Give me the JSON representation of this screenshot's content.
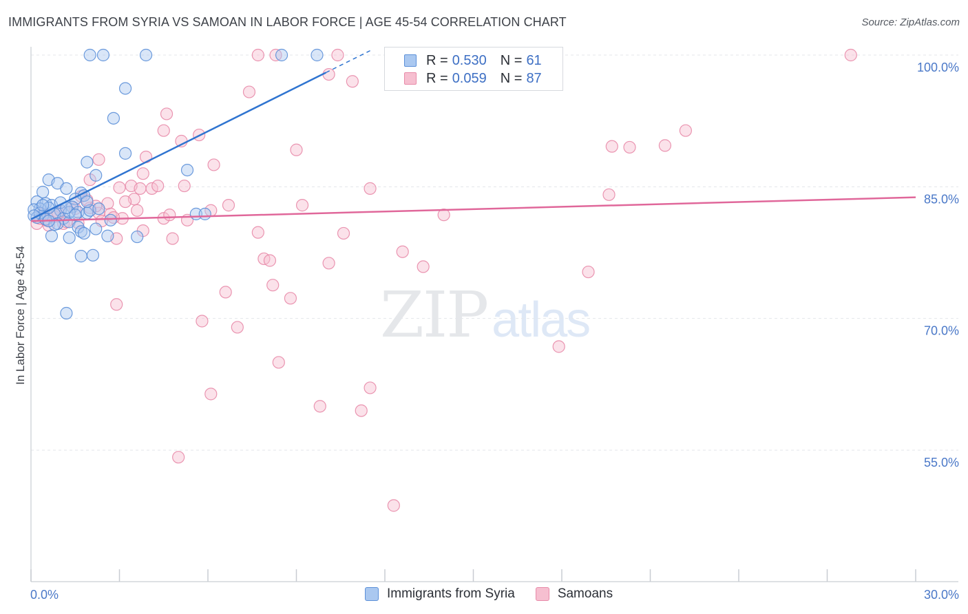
{
  "title": "IMMIGRANTS FROM SYRIA VS SAMOAN IN LABOR FORCE | AGE 45-54 CORRELATION CHART",
  "source": "Source: ZipAtlas.com",
  "watermark": {
    "zip": "ZIP",
    "atlas": "atlas"
  },
  "legend": {
    "rows": [
      {
        "r_label": "R =",
        "r_value": "0.530",
        "n_label": "N =",
        "n_value": "61"
      },
      {
        "r_label": "R =",
        "r_value": "0.059",
        "n_label": "N =",
        "n_value": "87"
      }
    ]
  },
  "bottom_legend": [
    "Immigrants from Syria",
    "Samoans"
  ],
  "colors": {
    "syria_fill": "#aac8f0",
    "syria_stroke": "#5b8fd8",
    "syria_line": "#2f74d0",
    "samoa_fill": "#f6bfd0",
    "samoa_stroke": "#e88aa8",
    "samoa_line": "#e0679a",
    "tick_text": "#4a78c8",
    "grid": "#e3e6ea"
  },
  "chart_data": {
    "type": "scatter",
    "title": "IMMIGRANTS FROM SYRIA VS SAMOAN IN LABOR FORCE | AGE 45-54 CORRELATION CHART",
    "xlabel": "",
    "ylabel": "In Labor Force | Age 45-54",
    "xlim": [
      0,
      30
    ],
    "ylim": [
      40,
      100
    ],
    "x_tick_labels": [
      "0.0%",
      "30.0%"
    ],
    "y_ticks": [
      100,
      85,
      70,
      55
    ],
    "y_tick_labels": [
      "100.0%",
      "85.0%",
      "70.0%",
      "55.0%"
    ],
    "series": [
      {
        "name": "Immigrants from Syria",
        "r": 0.53,
        "n": 61,
        "trend": {
          "x0": 0,
          "y0": 81.3,
          "x1": 10.0,
          "y1": 98.0,
          "dash_x1": 11.5,
          "dash_y1": 100.5
        },
        "points": [
          [
            2.0,
            100
          ],
          [
            2.45,
            100
          ],
          [
            3.9,
            100
          ],
          [
            8.5,
            100
          ],
          [
            9.7,
            100
          ],
          [
            3.2,
            96.2
          ],
          [
            2.8,
            92.8
          ],
          [
            3.2,
            88.8
          ],
          [
            1.9,
            87.8
          ],
          [
            2.2,
            86.3
          ],
          [
            5.3,
            86.9
          ],
          [
            0.6,
            85.8
          ],
          [
            0.9,
            85.4
          ],
          [
            1.2,
            84.8
          ],
          [
            0.4,
            84.4
          ],
          [
            1.7,
            84.3
          ],
          [
            1.8,
            84.0
          ],
          [
            1.5,
            83.6
          ],
          [
            0.2,
            83.3
          ],
          [
            0.5,
            83.1
          ],
          [
            0.7,
            82.9
          ],
          [
            1.4,
            82.7
          ],
          [
            0.3,
            82.5
          ],
          [
            0.1,
            82.4
          ],
          [
            1.0,
            82.3
          ],
          [
            1.6,
            82.1
          ],
          [
            1.9,
            82.0
          ],
          [
            0.8,
            81.9
          ],
          [
            0.4,
            81.7
          ],
          [
            0.2,
            81.5
          ],
          [
            1.1,
            81.4
          ],
          [
            2.7,
            81.2
          ],
          [
            1.3,
            81.0
          ],
          [
            0.9,
            80.8
          ],
          [
            1.6,
            80.4
          ],
          [
            2.2,
            80.2
          ],
          [
            1.7,
            79.9
          ],
          [
            1.8,
            79.7
          ],
          [
            0.7,
            79.4
          ],
          [
            1.3,
            79.2
          ],
          [
            2.6,
            79.4
          ],
          [
            3.6,
            79.3
          ],
          [
            1.7,
            77.1
          ],
          [
            2.1,
            77.2
          ],
          [
            1.2,
            70.6
          ],
          [
            5.6,
            81.9
          ],
          [
            5.9,
            81.9
          ],
          [
            0.3,
            82.0
          ],
          [
            0.6,
            82.6
          ],
          [
            1.3,
            82.1
          ],
          [
            2.0,
            82.3
          ],
          [
            0.5,
            81.3
          ],
          [
            0.8,
            80.7
          ],
          [
            1.5,
            81.8
          ],
          [
            2.3,
            82.5
          ],
          [
            0.1,
            81.7
          ],
          [
            0.4,
            82.9
          ],
          [
            1.0,
            83.2
          ],
          [
            1.9,
            83.3
          ],
          [
            0.6,
            81.1
          ],
          [
            1.2,
            82.6
          ]
        ]
      },
      {
        "name": "Samoans",
        "r": 0.059,
        "n": 87,
        "trend": {
          "x0": 0,
          "y0": 81.1,
          "x1": 30,
          "y1": 83.8
        },
        "points": [
          [
            7.7,
            100
          ],
          [
            8.3,
            100
          ],
          [
            10.4,
            100
          ],
          [
            27.8,
            100
          ],
          [
            10.1,
            97.8
          ],
          [
            10.9,
            97.0
          ],
          [
            7.4,
            95.8
          ],
          [
            4.6,
            93.3
          ],
          [
            4.5,
            91.4
          ],
          [
            5.7,
            90.9
          ],
          [
            5.1,
            90.2
          ],
          [
            9.0,
            89.2
          ],
          [
            19.7,
            89.6
          ],
          [
            20.3,
            89.5
          ],
          [
            21.5,
            89.7
          ],
          [
            22.2,
            91.4
          ],
          [
            3.9,
            88.4
          ],
          [
            2.3,
            88.1
          ],
          [
            6.2,
            87.5
          ],
          [
            3.8,
            86.5
          ],
          [
            2.0,
            85.8
          ],
          [
            3.4,
            85.1
          ],
          [
            3.0,
            84.9
          ],
          [
            3.7,
            84.8
          ],
          [
            4.1,
            84.8
          ],
          [
            4.3,
            85.1
          ],
          [
            5.2,
            85.1
          ],
          [
            11.5,
            84.8
          ],
          [
            19.6,
            84.1
          ],
          [
            1.7,
            83.9
          ],
          [
            3.5,
            83.6
          ],
          [
            3.2,
            83.3
          ],
          [
            2.6,
            83.1
          ],
          [
            6.7,
            82.9
          ],
          [
            9.2,
            82.9
          ],
          [
            1.4,
            82.7
          ],
          [
            2.0,
            82.6
          ],
          [
            6.1,
            82.3
          ],
          [
            1.0,
            82.2
          ],
          [
            2.3,
            82.0
          ],
          [
            2.7,
            81.9
          ],
          [
            3.1,
            81.4
          ],
          [
            4.5,
            81.4
          ],
          [
            4.7,
            81.8
          ],
          [
            5.3,
            81.2
          ],
          [
            14.0,
            81.8
          ],
          [
            2.4,
            81.1
          ],
          [
            1.1,
            80.8
          ],
          [
            0.6,
            80.6
          ],
          [
            0.2,
            80.8
          ],
          [
            3.8,
            80.0
          ],
          [
            7.7,
            79.8
          ],
          [
            10.6,
            79.7
          ],
          [
            2.9,
            79.1
          ],
          [
            4.8,
            79.1
          ],
          [
            12.6,
            77.6
          ],
          [
            7.9,
            76.8
          ],
          [
            8.1,
            76.6
          ],
          [
            10.1,
            76.3
          ],
          [
            13.3,
            75.9
          ],
          [
            18.9,
            75.3
          ],
          [
            8.2,
            73.8
          ],
          [
            6.6,
            73.0
          ],
          [
            8.8,
            72.3
          ],
          [
            2.9,
            71.6
          ],
          [
            5.8,
            69.7
          ],
          [
            7.0,
            69.0
          ],
          [
            17.9,
            66.8
          ],
          [
            8.4,
            65.0
          ],
          [
            11.5,
            62.1
          ],
          [
            6.1,
            61.4
          ],
          [
            9.8,
            60.0
          ],
          [
            11.2,
            59.5
          ],
          [
            12.3,
            48.7
          ],
          [
            5.0,
            54.2
          ],
          [
            1.5,
            82.5
          ],
          [
            0.8,
            81.6
          ],
          [
            0.4,
            81.9
          ],
          [
            1.9,
            83.5
          ],
          [
            2.2,
            82.8
          ],
          [
            0.5,
            81.2
          ],
          [
            1.2,
            81.0
          ],
          [
            3.6,
            82.3
          ],
          [
            2.8,
            81.5
          ],
          [
            0.9,
            82.1
          ],
          [
            1.6,
            80.9
          ],
          [
            0.3,
            81.4
          ]
        ]
      }
    ]
  }
}
